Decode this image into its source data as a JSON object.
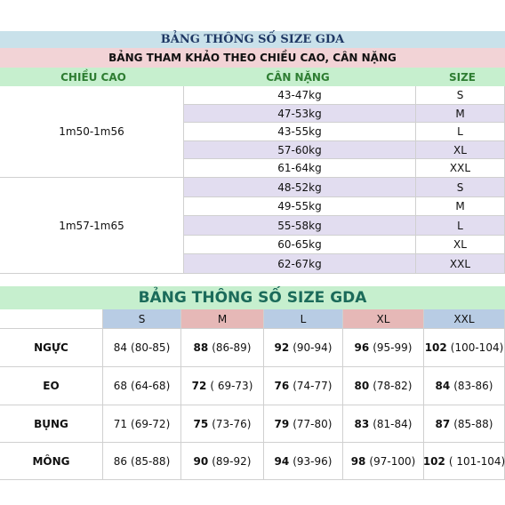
{
  "table1": {
    "title": "BẢNG THÔNG SỐ SIZE GDA",
    "subtitle": "BẢNG THAM KHẢO THEO CHIỀU CAO, CÂN NẶNG",
    "headers": [
      "CHIỀU CAO",
      "CÂN NẶNG",
      "SIZE"
    ],
    "groups": [
      {
        "height": "1m50-1m56",
        "rows": [
          [
            "43-47kg",
            "S"
          ],
          [
            "47-53kg",
            "M"
          ],
          [
            "43-55kg",
            "L"
          ],
          [
            "57-60kg",
            "XL"
          ],
          [
            "61-64kg",
            "XXL"
          ]
        ]
      },
      {
        "height": "1m57-1m65",
        "rows": [
          [
            "48-52kg",
            "S"
          ],
          [
            "49-55kg",
            "M"
          ],
          [
            "55-58kg",
            "L"
          ],
          [
            "60-65kg",
            "XL"
          ],
          [
            "62-67kg",
            "XXL"
          ]
        ]
      }
    ]
  },
  "table2": {
    "title": "BẢNG THÔNG SỐ SIZE GDA",
    "headers": [
      "S",
      "M",
      "L",
      "XL",
      "XXL"
    ],
    "rows": [
      {
        "label": "NGỰC",
        "cells": [
          [
            "84",
            "(80-85)"
          ],
          [
            "88",
            "(86-89)"
          ],
          [
            "92",
            "(90-94)"
          ],
          [
            "96",
            "(95-99)"
          ],
          [
            "102",
            "(100-104)"
          ]
        ]
      },
      {
        "label": "EO",
        "cells": [
          [
            "68",
            "(64-68)"
          ],
          [
            "72",
            "( 69-73)"
          ],
          [
            "76",
            "(74-77)"
          ],
          [
            "80",
            "(78-82)"
          ],
          [
            "84",
            "(83-86)"
          ]
        ]
      },
      {
        "label": "BỤNG",
        "cells": [
          [
            "71",
            "(69-72)"
          ],
          [
            "75",
            "(73-76)"
          ],
          [
            "79",
            "(77-80)"
          ],
          [
            "83",
            "(81-84)"
          ],
          [
            "87",
            "(85-88)"
          ]
        ]
      },
      {
        "label": "MÔNG",
        "cells": [
          [
            "86",
            "(85-88)"
          ],
          [
            "90",
            "(89-92)"
          ],
          [
            "94",
            "(93-96)"
          ],
          [
            "98",
            "(97-100)"
          ],
          [
            "102",
            "( 101-104)"
          ]
        ]
      }
    ]
  }
}
